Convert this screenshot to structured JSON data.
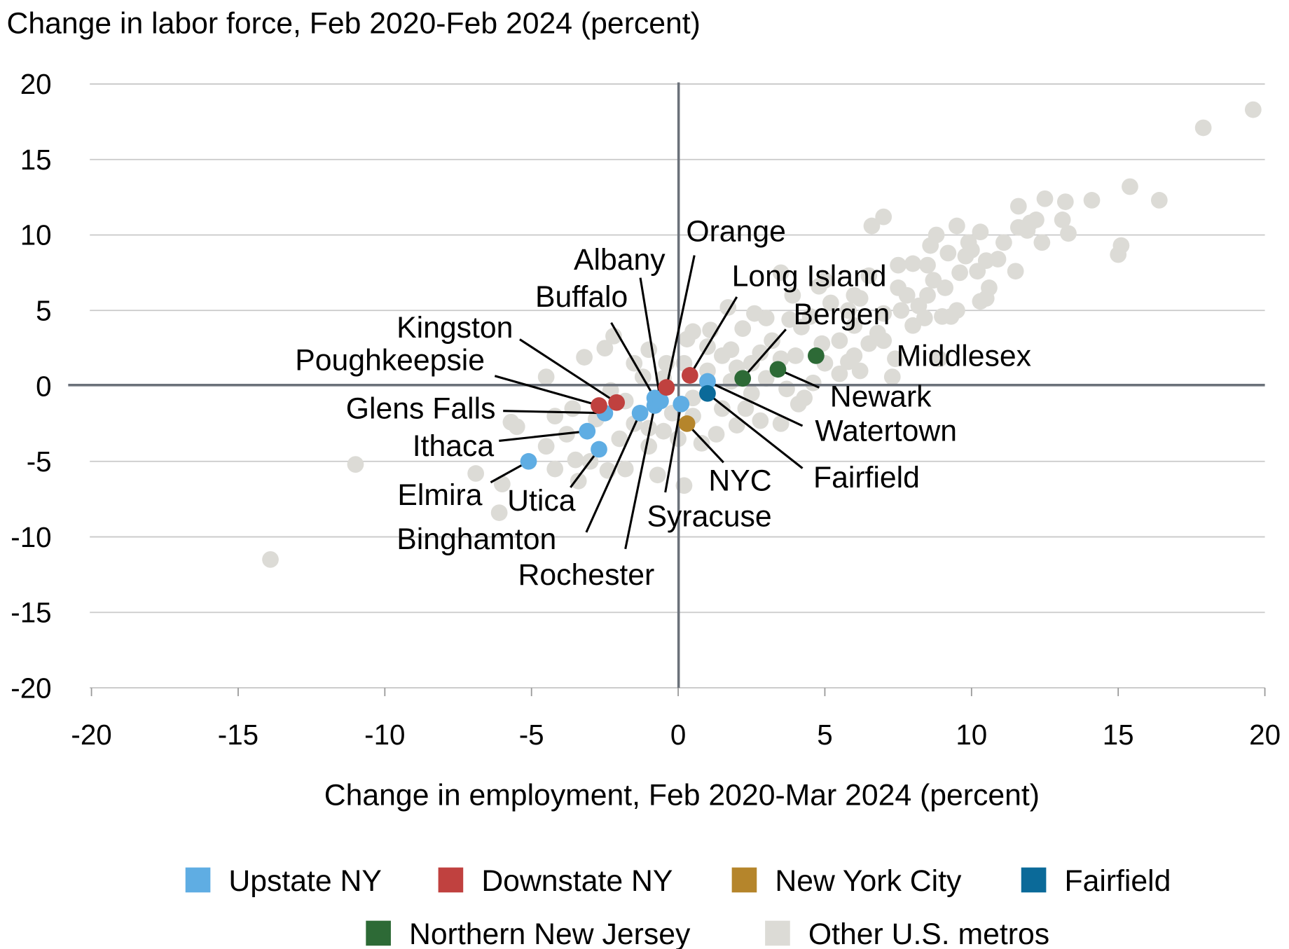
{
  "chart_data": {
    "type": "scatter",
    "title": "Change in labor force, Feb 2020-Feb 2024 (percent)",
    "xlabel": "Change in employment, Feb 2020-Mar 2024 (percent)",
    "ylabel": "Change in labor force, Feb 2020-Feb 2024 (percent)",
    "xlim": [
      -20,
      20
    ],
    "ylim": [
      -20,
      20
    ],
    "x_ticks": [
      -20,
      -15,
      -10,
      -5,
      0,
      5,
      10,
      15,
      20
    ],
    "y_ticks": [
      20,
      15,
      10,
      5,
      0,
      -5,
      -10,
      -15,
      -20
    ],
    "grid": "horizontal",
    "legend_placement": "bottom",
    "groups": {
      "upstate": {
        "name": "Upstate NY",
        "color": "#5fade3"
      },
      "downstate": {
        "name": "Downstate NY",
        "color": "#c0413f"
      },
      "nyc": {
        "name": "New York City",
        "color": "#b5852b"
      },
      "fairfield": {
        "name": "Fairfield",
        "color": "#0b6a99"
      },
      "nj": {
        "name": "Northern New Jersey",
        "color": "#2d6a36"
      },
      "other": {
        "name": "Other U.S. metros",
        "color": "#dcdbd6"
      }
    },
    "labeled_points": [
      {
        "label": "Elmira",
        "group": "upstate",
        "x": -5.1,
        "y": -5.0
      },
      {
        "label": "Utica",
        "group": "upstate",
        "x": -2.7,
        "y": -4.2
      },
      {
        "label": "Ithaca",
        "group": "upstate",
        "x": -3.1,
        "y": -3.0
      },
      {
        "label": "Glens Falls",
        "group": "upstate",
        "x": -2.5,
        "y": -1.8
      },
      {
        "label": "Poughkeepsie",
        "group": "downstate",
        "x": -2.7,
        "y": -1.3
      },
      {
        "label": "Kingston",
        "group": "downstate",
        "x": -2.1,
        "y": -1.1
      },
      {
        "label": "Binghamton",
        "group": "upstate",
        "x": -1.3,
        "y": -1.8
      },
      {
        "label": "Rochester",
        "group": "upstate",
        "x": -0.8,
        "y": -1.3
      },
      {
        "label": "Buffalo",
        "group": "upstate",
        "x": -0.8,
        "y": -0.8
      },
      {
        "label": "Albany",
        "group": "upstate",
        "x": -0.6,
        "y": -1.0
      },
      {
        "label": "Orange",
        "group": "downstate",
        "x": -0.4,
        "y": -0.1
      },
      {
        "label": "Syracuse",
        "group": "upstate",
        "x": 0.1,
        "y": -1.2
      },
      {
        "label": "Long Island",
        "group": "downstate",
        "x": 0.4,
        "y": 0.7
      },
      {
        "label": "Watertown",
        "group": "upstate",
        "x": 1.0,
        "y": 0.3
      },
      {
        "label": "Fairfield",
        "group": "fairfield",
        "x": 1.0,
        "y": -0.5
      },
      {
        "label": "NYC",
        "group": "nyc",
        "x": 0.3,
        "y": -2.5
      },
      {
        "label": "Bergen",
        "group": "nj",
        "x": 2.2,
        "y": 0.5
      },
      {
        "label": "Newark",
        "group": "nj",
        "x": 3.4,
        "y": 1.1
      },
      {
        "label": "Middlesex",
        "group": "nj",
        "x": 4.7,
        "y": 2.0
      }
    ],
    "other_points": [
      [
        19.6,
        18.3
      ],
      [
        17.9,
        17.1
      ],
      [
        15.4,
        13.2
      ],
      [
        16.4,
        12.3
      ],
      [
        15.1,
        9.3
      ],
      [
        15.0,
        8.7
      ],
      [
        14.1,
        12.3
      ],
      [
        13.2,
        12.2
      ],
      [
        12.5,
        12.4
      ],
      [
        11.6,
        11.9
      ],
      [
        13.1,
        11.0
      ],
      [
        13.3,
        10.1
      ],
      [
        12.2,
        11.0
      ],
      [
        12.4,
        9.5
      ],
      [
        11.6,
        10.5
      ],
      [
        11.5,
        7.6
      ],
      [
        10.5,
        8.3
      ],
      [
        11.1,
        9.5
      ],
      [
        10.3,
        10.2
      ],
      [
        9.5,
        10.6
      ],
      [
        8.8,
        10.0
      ],
      [
        7.0,
        11.2
      ],
      [
        6.6,
        10.6
      ],
      [
        10.5,
        5.8
      ],
      [
        10.6,
        6.5
      ],
      [
        9.5,
        5.0
      ],
      [
        9.0,
        4.6
      ],
      [
        8.7,
        7.0
      ],
      [
        9.2,
        8.8
      ],
      [
        8.5,
        8.0
      ],
      [
        8.0,
        8.1
      ],
      [
        7.5,
        6.5
      ],
      [
        6.0,
        6.0
      ],
      [
        5.0,
        7.0
      ],
      [
        4.8,
        6.6
      ],
      [
        3.5,
        7.5
      ],
      [
        3.8,
        4.4
      ],
      [
        4.2,
        3.9
      ],
      [
        3.0,
        4.5
      ],
      [
        2.8,
        2.2
      ],
      [
        1.7,
        5.2
      ],
      [
        1.1,
        3.7
      ],
      [
        0.3,
        3.1
      ],
      [
        -1.0,
        2.4
      ],
      [
        -2.2,
        3.3
      ],
      [
        -2.5,
        2.5
      ],
      [
        -3.2,
        1.9
      ],
      [
        -4.5,
        0.6
      ],
      [
        -1.5,
        1.5
      ],
      [
        0.2,
        1.5
      ],
      [
        1.8,
        2.4
      ],
      [
        2.5,
        1.5
      ],
      [
        -3.6,
        -1.5
      ],
      [
        -4.2,
        -2.0
      ],
      [
        -5.7,
        -2.4
      ],
      [
        -5.5,
        -2.7
      ],
      [
        -4.2,
        -5.5
      ],
      [
        -3.5,
        -4.9
      ],
      [
        -3.4,
        -6.3
      ],
      [
        -6.0,
        -6.5
      ],
      [
        -6.1,
        -8.4
      ],
      [
        -6.9,
        -5.8
      ],
      [
        -11.0,
        -5.2
      ],
      [
        -13.9,
        -11.5
      ],
      [
        -2.4,
        -5.6
      ],
      [
        -1.8,
        -5.5
      ],
      [
        -0.7,
        -5.9
      ],
      [
        0.2,
        -6.6
      ],
      [
        -1.0,
        -4.0
      ],
      [
        0.0,
        -3.5
      ],
      [
        1.3,
        -3.2
      ],
      [
        2.0,
        -2.6
      ],
      [
        2.8,
        -2.3
      ],
      [
        3.5,
        -2.5
      ],
      [
        4.1,
        -1.2
      ],
      [
        4.3,
        -0.8
      ],
      [
        5.5,
        0.8
      ],
      [
        6.2,
        1.0
      ],
      [
        7.3,
        0.6
      ],
      [
        7.4,
        1.8
      ],
      [
        8.9,
        1.8
      ],
      [
        6.5,
        2.8
      ],
      [
        5.5,
        3.0
      ],
      [
        6.0,
        4.0
      ],
      [
        7.0,
        4.8
      ],
      [
        6.8,
        3.5
      ],
      [
        8.0,
        4.0
      ],
      [
        8.5,
        6.0
      ],
      [
        9.6,
        7.5
      ],
      [
        10.0,
        9.0
      ],
      [
        7.8,
        6.0
      ],
      [
        7.5,
        8.0
      ],
      [
        6.5,
        7.3
      ],
      [
        5.8,
        5.0
      ],
      [
        4.9,
        2.8
      ],
      [
        4.0,
        2.0
      ],
      [
        3.2,
        3.0
      ],
      [
        2.0,
        1.2
      ],
      [
        1.5,
        2.0
      ],
      [
        1.0,
        1.0
      ],
      [
        -0.5,
        0.5
      ],
      [
        0.5,
        -0.8
      ],
      [
        1.5,
        -1.5
      ],
      [
        2.5,
        -0.5
      ],
      [
        -1.5,
        -2.5
      ],
      [
        -2.0,
        -3.5
      ],
      [
        -1.0,
        -2.8
      ],
      [
        0.5,
        -2.0
      ],
      [
        -0.5,
        -3.0
      ],
      [
        3.0,
        0.5
      ],
      [
        3.5,
        1.8
      ],
      [
        4.5,
        4.6
      ],
      [
        5.2,
        5.5
      ],
      [
        8.2,
        5.3
      ],
      [
        9.1,
        6.5
      ],
      [
        6.2,
        5.8
      ],
      [
        10.2,
        7.6
      ],
      [
        9.8,
        8.6
      ],
      [
        8.6,
        9.3
      ],
      [
        11.9,
        10.3
      ],
      [
        7.6,
        5.0
      ],
      [
        3.9,
        6.0
      ],
      [
        2.6,
        4.8
      ],
      [
        2.2,
        3.8
      ],
      [
        1.0,
        2.6
      ],
      [
        -0.4,
        1.5
      ],
      [
        0.5,
        3.6
      ],
      [
        -1.8,
        -1.0
      ],
      [
        -2.8,
        -2.2
      ],
      [
        -3.8,
        -3.2
      ],
      [
        -4.5,
        -4.0
      ],
      [
        -3.0,
        -5.0
      ],
      [
        5.0,
        1.5
      ],
      [
        6.0,
        2.0
      ],
      [
        7.0,
        3.0
      ],
      [
        10.3,
        5.6
      ],
      [
        8.4,
        4.5
      ],
      [
        9.3,
        4.6
      ],
      [
        2.3,
        -1.5
      ],
      [
        1.8,
        0.3
      ],
      [
        -0.2,
        -1.8
      ],
      [
        -1.2,
        0.6
      ],
      [
        0.8,
        -3.8
      ],
      [
        -2.3,
        -0.3
      ],
      [
        3.7,
        -0.2
      ],
      [
        4.6,
        0.2
      ],
      [
        5.8,
        1.6
      ],
      [
        9.9,
        9.5
      ],
      [
        10.9,
        8.4
      ],
      [
        12.0,
        10.8
      ]
    ]
  }
}
